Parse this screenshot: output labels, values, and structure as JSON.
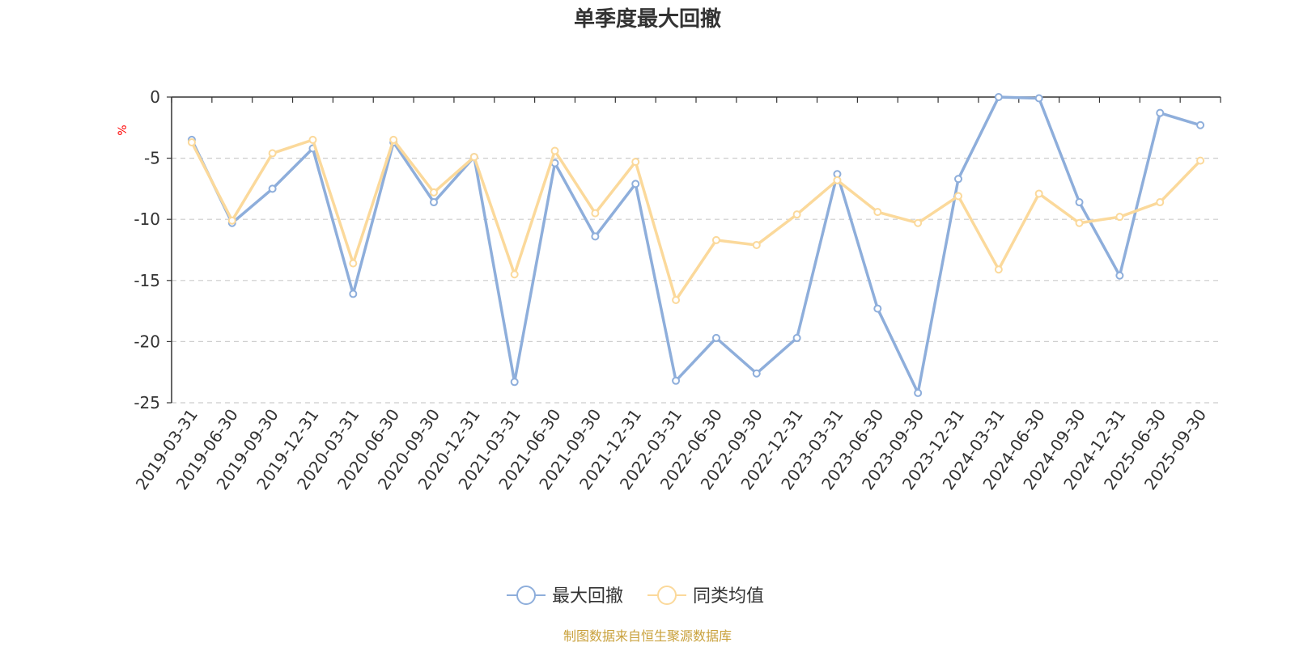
{
  "chart_data": {
    "type": "line",
    "title": "单季度最大回撤",
    "ylabel": "%",
    "ylim": [
      -25,
      0
    ],
    "yticks": [
      0,
      -5,
      -10,
      -15,
      -20,
      -25
    ],
    "grid": true,
    "legend_position": "bottom",
    "categories": [
      "2019-03-31",
      "2019-06-30",
      "2019-09-30",
      "2019-12-31",
      "2020-03-31",
      "2020-06-30",
      "2020-09-30",
      "2020-12-31",
      "2021-03-31",
      "2021-06-30",
      "2021-09-30",
      "2021-12-31",
      "2022-03-31",
      "2022-06-30",
      "2022-09-30",
      "2022-12-31",
      "2023-03-31",
      "2023-06-30",
      "2023-09-30",
      "2023-12-31",
      "2024-03-31",
      "2024-06-30",
      "2024-09-30",
      "2024-12-31",
      "2025-06-30",
      "2025-09-30"
    ],
    "series": [
      {
        "name": "最大回撤",
        "color": "#8eaedb",
        "values": [
          -3.5,
          -10.3,
          -7.5,
          -4.2,
          -16.1,
          -3.7,
          -8.6,
          -4.9,
          -23.3,
          -5.4,
          -11.4,
          -7.1,
          -23.2,
          -19.7,
          -22.6,
          -19.7,
          -6.3,
          -17.3,
          -24.2,
          -6.7,
          0.0,
          -0.1,
          -8.6,
          -14.6,
          -1.3,
          -2.3
        ]
      },
      {
        "name": "同类均值",
        "color": "#fbd99b",
        "values": [
          -3.7,
          -10.1,
          -4.6,
          -3.5,
          -13.6,
          -3.5,
          -7.8,
          -4.9,
          -14.5,
          -4.4,
          -9.5,
          -5.3,
          -16.6,
          -11.7,
          -12.1,
          -9.6,
          -6.8,
          -9.4,
          -10.3,
          -8.1,
          -14.1,
          -7.9,
          -10.3,
          -9.8,
          -8.6,
          -5.2
        ]
      }
    ]
  },
  "source_text": "制图数据来自恒生聚源数据库",
  "colors": {
    "axis": "#333333",
    "grid": "#cccccc",
    "unit": "#ff0000",
    "source": "#c9a13c"
  }
}
